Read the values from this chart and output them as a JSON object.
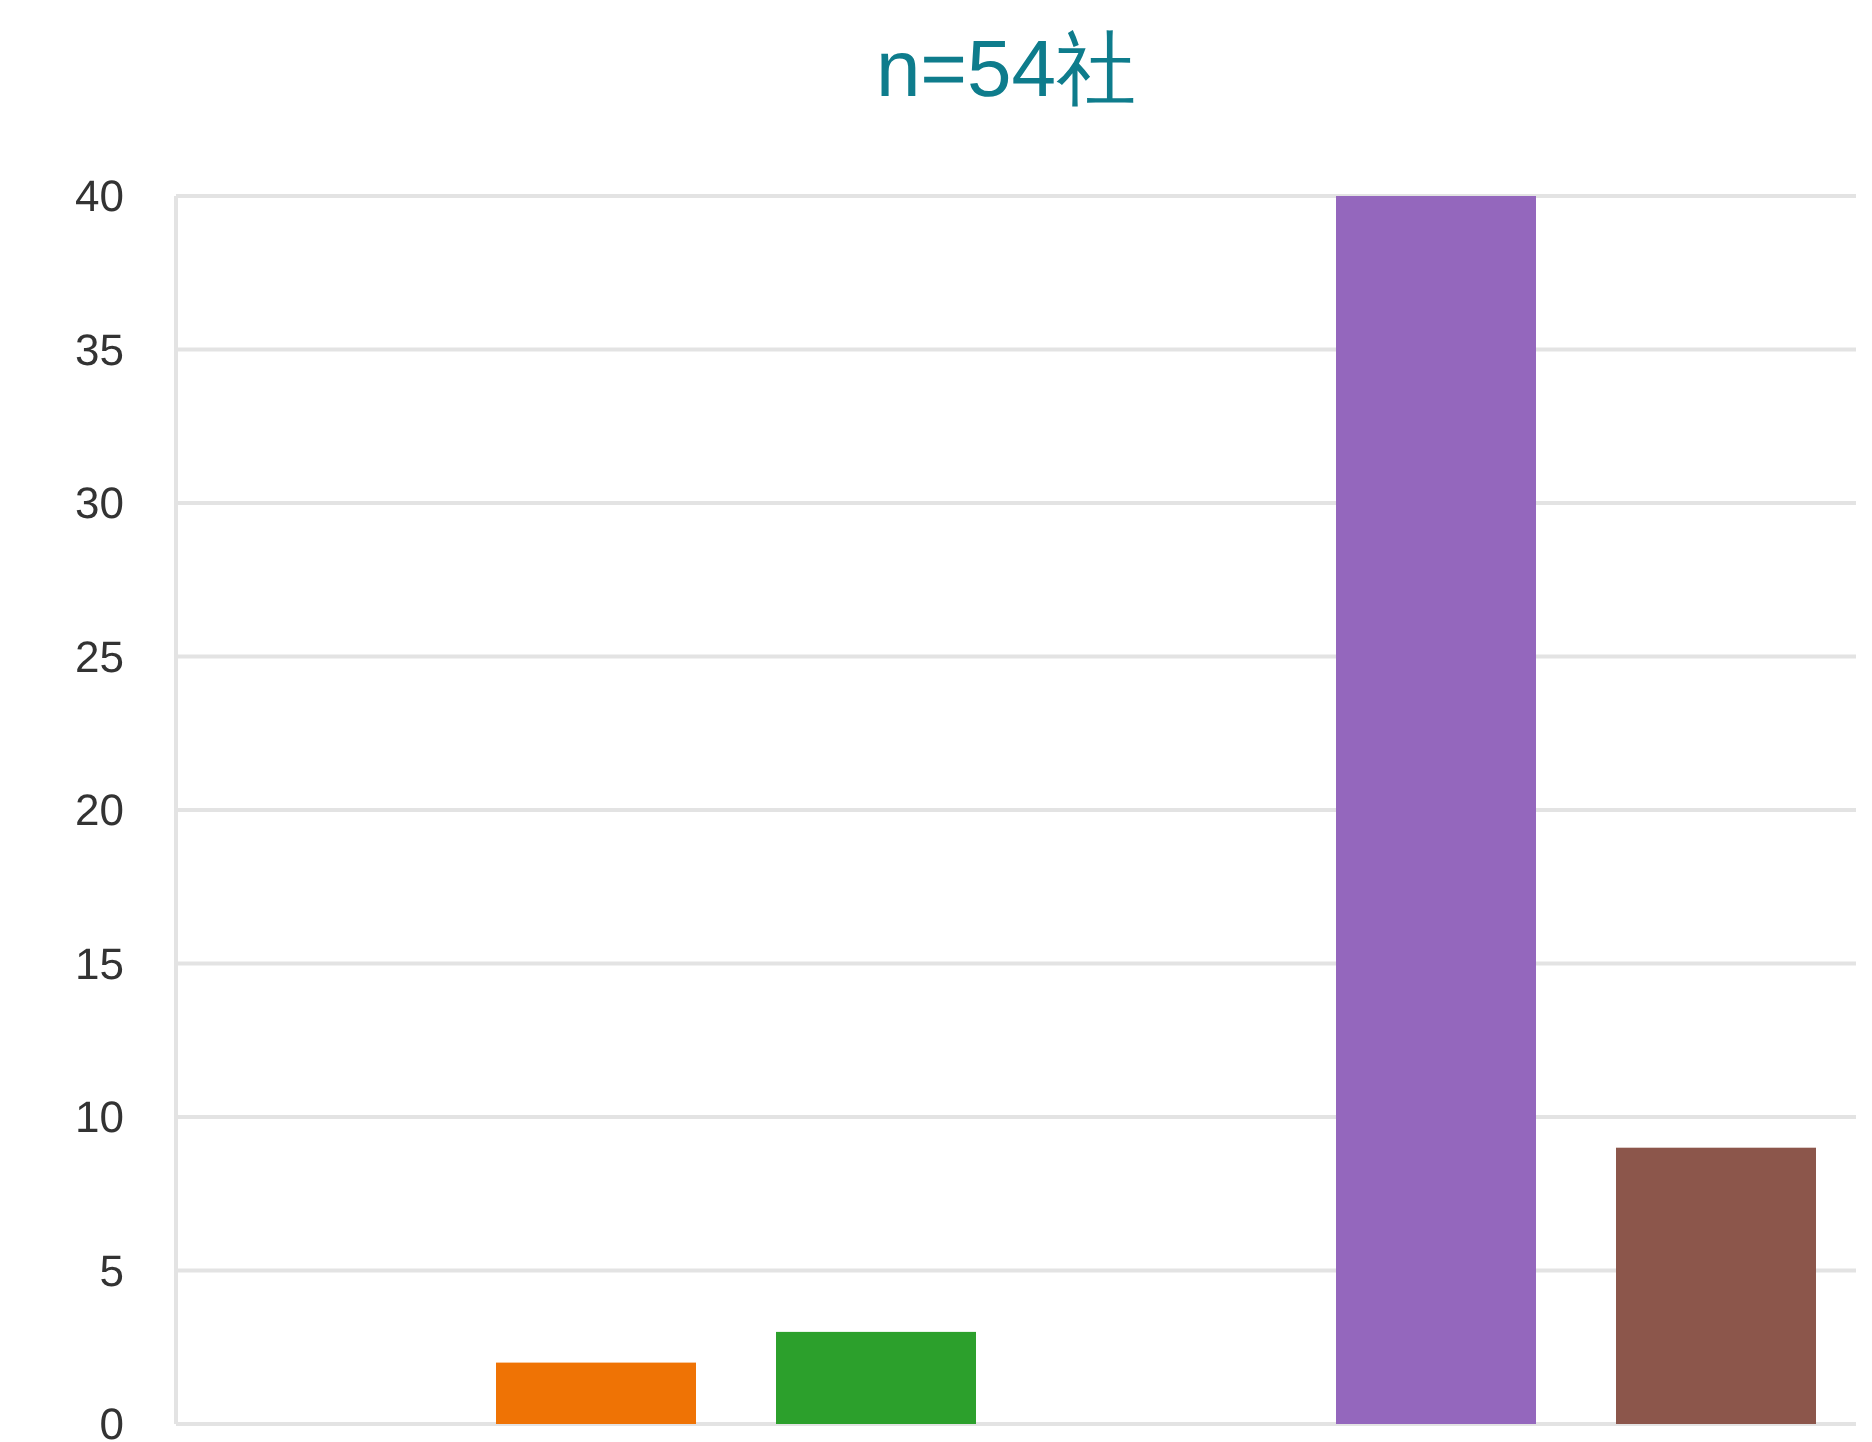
{
  "chart_data": {
    "type": "bar",
    "title": "n=54社",
    "categories": [
      null,
      null,
      null,
      null,
      null,
      null
    ],
    "values": [
      0,
      2,
      3,
      0,
      40,
      9
    ],
    "colors": [
      "#1f77b4",
      "#ef7305",
      "#2ca02c",
      "#d62728",
      "#9467bd",
      "#8c564b"
    ],
    "ylim": [
      0,
      40
    ],
    "yticks": [
      0,
      5,
      10,
      15,
      20,
      25,
      30,
      35,
      40
    ],
    "grid": "y",
    "tick_labels": "y"
  }
}
